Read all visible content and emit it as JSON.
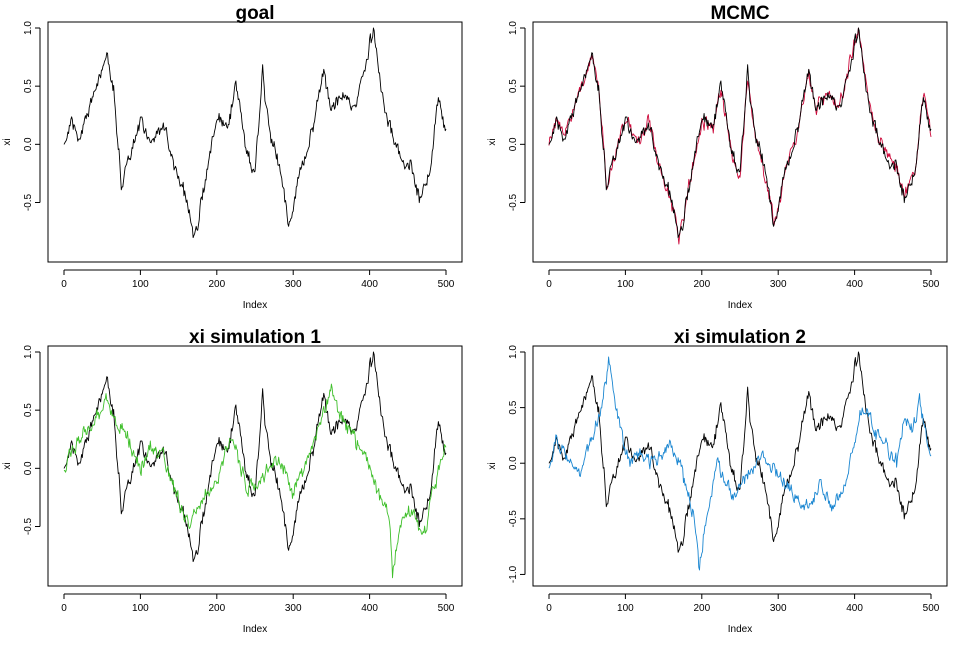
{
  "chart_data": [
    {
      "type": "line",
      "title": "goal",
      "xlabel": "Index",
      "ylabel": "xi",
      "xlim": [
        0,
        500
      ],
      "ylim": [
        -0.96,
        1.0
      ],
      "xticks": [
        0,
        100,
        200,
        300,
        400,
        500
      ],
      "yticks": [
        -0.5,
        0.0,
        0.5,
        1.0
      ],
      "series": [
        {
          "key": "goal",
          "color": "#000000",
          "seed": 17,
          "shape": "goal"
        }
      ]
    },
    {
      "type": "line",
      "title": "MCMC",
      "xlabel": "Index",
      "ylabel": "xi",
      "xlim": [
        0,
        500
      ],
      "ylim": [
        -0.96,
        1.0
      ],
      "xticks": [
        0,
        100,
        200,
        300,
        400,
        500
      ],
      "yticks": [
        -0.5,
        0.0,
        0.5,
        1.0
      ],
      "series": [
        {
          "key": "mcmc",
          "color": "#cd0b3c",
          "seed": 91,
          "shape": "goal",
          "noise": 0.085
        },
        {
          "key": "goal",
          "color": "#000000",
          "seed": 17,
          "shape": "goal"
        }
      ]
    },
    {
      "type": "line",
      "title": "xi simulation 1",
      "xlabel": "Index",
      "ylabel": "xi",
      "xlim": [
        0,
        500
      ],
      "ylim": [
        -0.96,
        1.0
      ],
      "xticks": [
        0,
        100,
        200,
        300,
        400,
        500
      ],
      "yticks": [
        -0.5,
        0.0,
        0.5,
        1.0
      ],
      "series": [
        {
          "key": "goal",
          "color": "#000000",
          "seed": 17,
          "shape": "goal"
        },
        {
          "key": "sim1",
          "color": "#3fbf2b",
          "seed": 53,
          "shape": "sim1"
        }
      ]
    },
    {
      "type": "line",
      "title": "xi simulation 2",
      "xlabel": "Index",
      "ylabel": "xi",
      "xlim": [
        0,
        500
      ],
      "ylim": [
        -1.05,
        1.0
      ],
      "xticks": [
        0,
        100,
        200,
        300,
        400,
        500
      ],
      "yticks": [
        -1.0,
        -0.5,
        0.0,
        0.5,
        1.0
      ],
      "series": [
        {
          "key": "goal",
          "color": "#000000",
          "seed": 17,
          "shape": "goal"
        },
        {
          "key": "sim2",
          "color": "#1a86d1",
          "seed": 29,
          "shape": "sim2"
        }
      ]
    }
  ],
  "shapes": {
    "goal": [
      [
        0,
        0.0
      ],
      [
        10,
        0.22
      ],
      [
        20,
        0.05
      ],
      [
        30,
        0.25
      ],
      [
        40,
        0.45
      ],
      [
        57,
        0.78
      ],
      [
        65,
        0.5
      ],
      [
        75,
        -0.35
      ],
      [
        90,
        0.0
      ],
      [
        100,
        0.2
      ],
      [
        115,
        0.0
      ],
      [
        130,
        0.2
      ],
      [
        145,
        -0.2
      ],
      [
        160,
        -0.5
      ],
      [
        170,
        -0.85
      ],
      [
        185,
        -0.3
      ],
      [
        200,
        0.2
      ],
      [
        215,
        0.15
      ],
      [
        225,
        0.5
      ],
      [
        240,
        -0.1
      ],
      [
        250,
        -0.3
      ],
      [
        260,
        0.6
      ],
      [
        270,
        0.05
      ],
      [
        285,
        -0.3
      ],
      [
        295,
        -0.7
      ],
      [
        310,
        -0.2
      ],
      [
        325,
        0.1
      ],
      [
        340,
        0.6
      ],
      [
        350,
        0.3
      ],
      [
        365,
        0.45
      ],
      [
        380,
        0.3
      ],
      [
        395,
        0.75
      ],
      [
        405,
        0.98
      ],
      [
        415,
        0.5
      ],
      [
        425,
        0.2
      ],
      [
        440,
        -0.1
      ],
      [
        455,
        -0.2
      ],
      [
        465,
        -0.45
      ],
      [
        480,
        -0.2
      ],
      [
        490,
        0.45
      ],
      [
        500,
        0.1
      ]
    ],
    "sim1": [
      [
        0,
        0.0
      ],
      [
        10,
        0.15
      ],
      [
        20,
        0.25
      ],
      [
        30,
        0.3
      ],
      [
        40,
        0.4
      ],
      [
        50,
        0.55
      ],
      [
        55,
        0.65
      ],
      [
        65,
        0.45
      ],
      [
        80,
        0.3
      ],
      [
        100,
        0.0
      ],
      [
        115,
        0.2
      ],
      [
        130,
        0.1
      ],
      [
        150,
        -0.3
      ],
      [
        165,
        -0.5
      ],
      [
        180,
        -0.3
      ],
      [
        200,
        -0.1
      ],
      [
        220,
        0.3
      ],
      [
        240,
        -0.2
      ],
      [
        260,
        -0.1
      ],
      [
        280,
        0.1
      ],
      [
        300,
        -0.2
      ],
      [
        315,
        0.0
      ],
      [
        335,
        0.4
      ],
      [
        350,
        0.7
      ],
      [
        360,
        0.5
      ],
      [
        375,
        0.3
      ],
      [
        395,
        0.1
      ],
      [
        410,
        -0.2
      ],
      [
        425,
        -0.4
      ],
      [
        430,
        -0.88
      ],
      [
        440,
        -0.5
      ],
      [
        455,
        -0.35
      ],
      [
        470,
        -0.6
      ],
      [
        480,
        -0.3
      ],
      [
        490,
        0.0
      ],
      [
        500,
        0.25
      ]
    ],
    "sim2": [
      [
        0,
        0.0
      ],
      [
        10,
        0.2
      ],
      [
        20,
        0.1
      ],
      [
        30,
        0.0
      ],
      [
        40,
        -0.1
      ],
      [
        50,
        0.1
      ],
      [
        60,
        0.3
      ],
      [
        70,
        0.55
      ],
      [
        78,
        0.9
      ],
      [
        90,
        0.4
      ],
      [
        105,
        0.0
      ],
      [
        120,
        0.1
      ],
      [
        140,
        0.0
      ],
      [
        160,
        0.2
      ],
      [
        175,
        -0.1
      ],
      [
        190,
        -0.5
      ],
      [
        197,
        -0.98
      ],
      [
        205,
        -0.5
      ],
      [
        220,
        0.0
      ],
      [
        240,
        -0.3
      ],
      [
        260,
        -0.1
      ],
      [
        280,
        0.1
      ],
      [
        300,
        -0.1
      ],
      [
        320,
        -0.3
      ],
      [
        340,
        -0.4
      ],
      [
        355,
        -0.2
      ],
      [
        370,
        -0.4
      ],
      [
        385,
        -0.3
      ],
      [
        400,
        0.2
      ],
      [
        410,
        0.5
      ],
      [
        425,
        0.3
      ],
      [
        440,
        0.2
      ],
      [
        455,
        0.0
      ],
      [
        465,
        0.4
      ],
      [
        475,
        0.3
      ],
      [
        485,
        0.55
      ],
      [
        495,
        0.2
      ],
      [
        500,
        0.05
      ]
    ]
  }
}
